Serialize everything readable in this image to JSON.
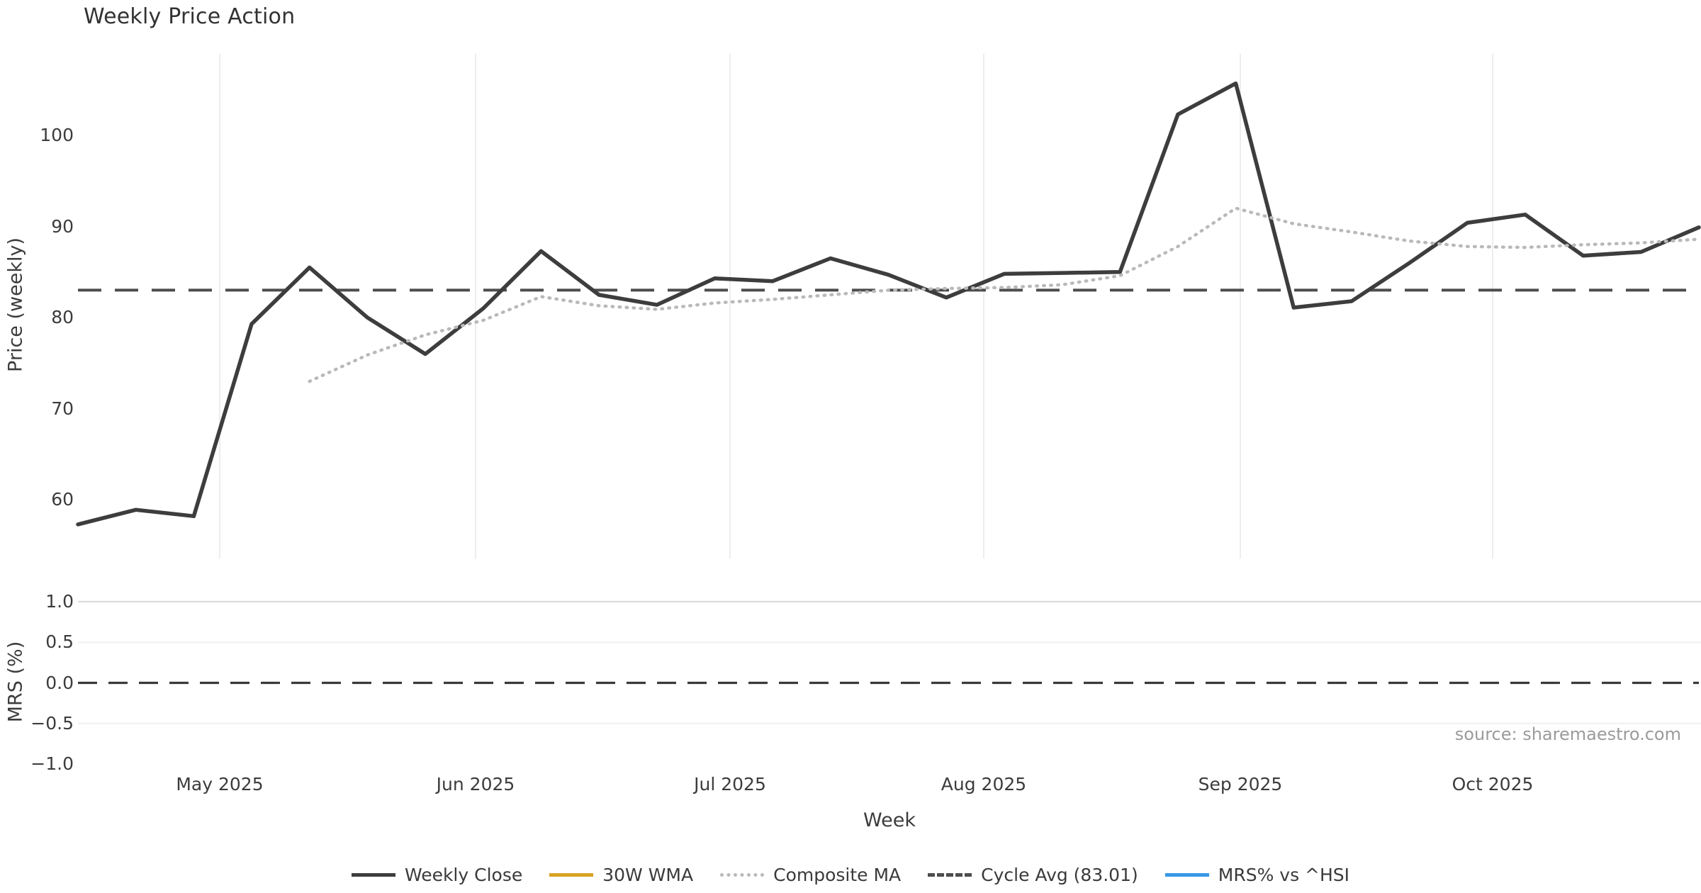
{
  "chart_data": {
    "type": "line",
    "title": "Weekly Price Action",
    "xlabel": "Week",
    "source_note": "source: sharemaestro.com",
    "x_tick_labels": [
      "May 2025",
      "Jun 2025",
      "Jul 2025",
      "Aug 2025",
      "Sep 2025",
      "Oct 2025"
    ],
    "weeks": [
      "2025-04-14",
      "2025-04-21",
      "2025-04-28",
      "2025-05-05",
      "2025-05-12",
      "2025-05-19",
      "2025-05-26",
      "2025-06-02",
      "2025-06-09",
      "2025-06-16",
      "2025-06-23",
      "2025-06-30",
      "2025-07-07",
      "2025-07-14",
      "2025-07-21",
      "2025-07-28",
      "2025-08-04",
      "2025-08-11",
      "2025-08-18",
      "2025-08-25",
      "2025-09-01",
      "2025-09-08",
      "2025-09-15",
      "2025-09-22",
      "2025-09-29",
      "2025-10-06",
      "2025-10-13",
      "2025-10-20",
      "2025-10-27"
    ],
    "top_panel": {
      "ylabel": "Price (weekly)",
      "yticks": [
        "100",
        "90",
        "80",
        "70",
        "60"
      ],
      "ytick_values": [
        100,
        90,
        80,
        70,
        60
      ],
      "ylim": [
        54.5,
        108.5
      ],
      "grid": "vertical-months-only",
      "cycle_avg": 83.01,
      "series": [
        {
          "name": "Weekly Close",
          "color": "#3d3d3d",
          "style": "solid",
          "values": [
            57.3,
            58.9,
            58.2,
            79.3,
            85.5,
            80.0,
            76.0,
            81.0,
            87.3,
            82.5,
            81.4,
            84.3,
            84.0,
            86.5,
            84.7,
            82.2,
            84.8,
            84.9,
            85.0,
            102.3,
            105.7,
            81.1,
            81.8,
            86.0,
            90.4,
            91.3,
            86.8,
            87.2,
            89.9
          ]
        },
        {
          "name": "30W WMA",
          "color": "#d7a322",
          "style": "solid",
          "values": []
        },
        {
          "name": "Composite MA",
          "color": "#b9b9b9",
          "style": "dotted",
          "values": [
            null,
            null,
            null,
            null,
            73.0,
            75.9,
            78.1,
            79.7,
            82.3,
            81.3,
            80.9,
            81.6,
            82.0,
            82.5,
            83.0,
            83.2,
            83.3,
            83.6,
            84.6,
            87.8,
            92.0,
            90.3,
            89.4,
            88.4,
            87.8,
            87.7,
            88.0,
            88.2,
            88.6
          ]
        }
      ]
    },
    "bottom_panel": {
      "ylabel": "MRS (%)",
      "yticks": [
        "1.0",
        "0.5",
        "0.0",
        "−0.5",
        "−1.0"
      ],
      "ytick_values": [
        1.0,
        0.5,
        0.0,
        -0.5,
        -1.0
      ],
      "ylim": [
        -1.0,
        1.0
      ],
      "grid": "horizontal-only",
      "zero_dashed_line": 0.0,
      "series": [
        {
          "name": "MRS% vs ^HSI",
          "color": "#3897e8",
          "style": "solid",
          "visible": false,
          "values": []
        }
      ]
    },
    "legend": [
      {
        "label": "Weekly Close",
        "color": "#3d3d3d",
        "style": "solid"
      },
      {
        "label": "30W WMA",
        "color": "#d7a322",
        "style": "solid"
      },
      {
        "label": "Composite MA",
        "color": "#b9b9b9",
        "style": "dotted"
      },
      {
        "label": "Cycle Avg (83.01)",
        "color": "#4d4d4d",
        "style": "dashed"
      },
      {
        "label": "MRS% vs ^HSI",
        "color": "#3897e8",
        "style": "solid"
      }
    ]
  }
}
